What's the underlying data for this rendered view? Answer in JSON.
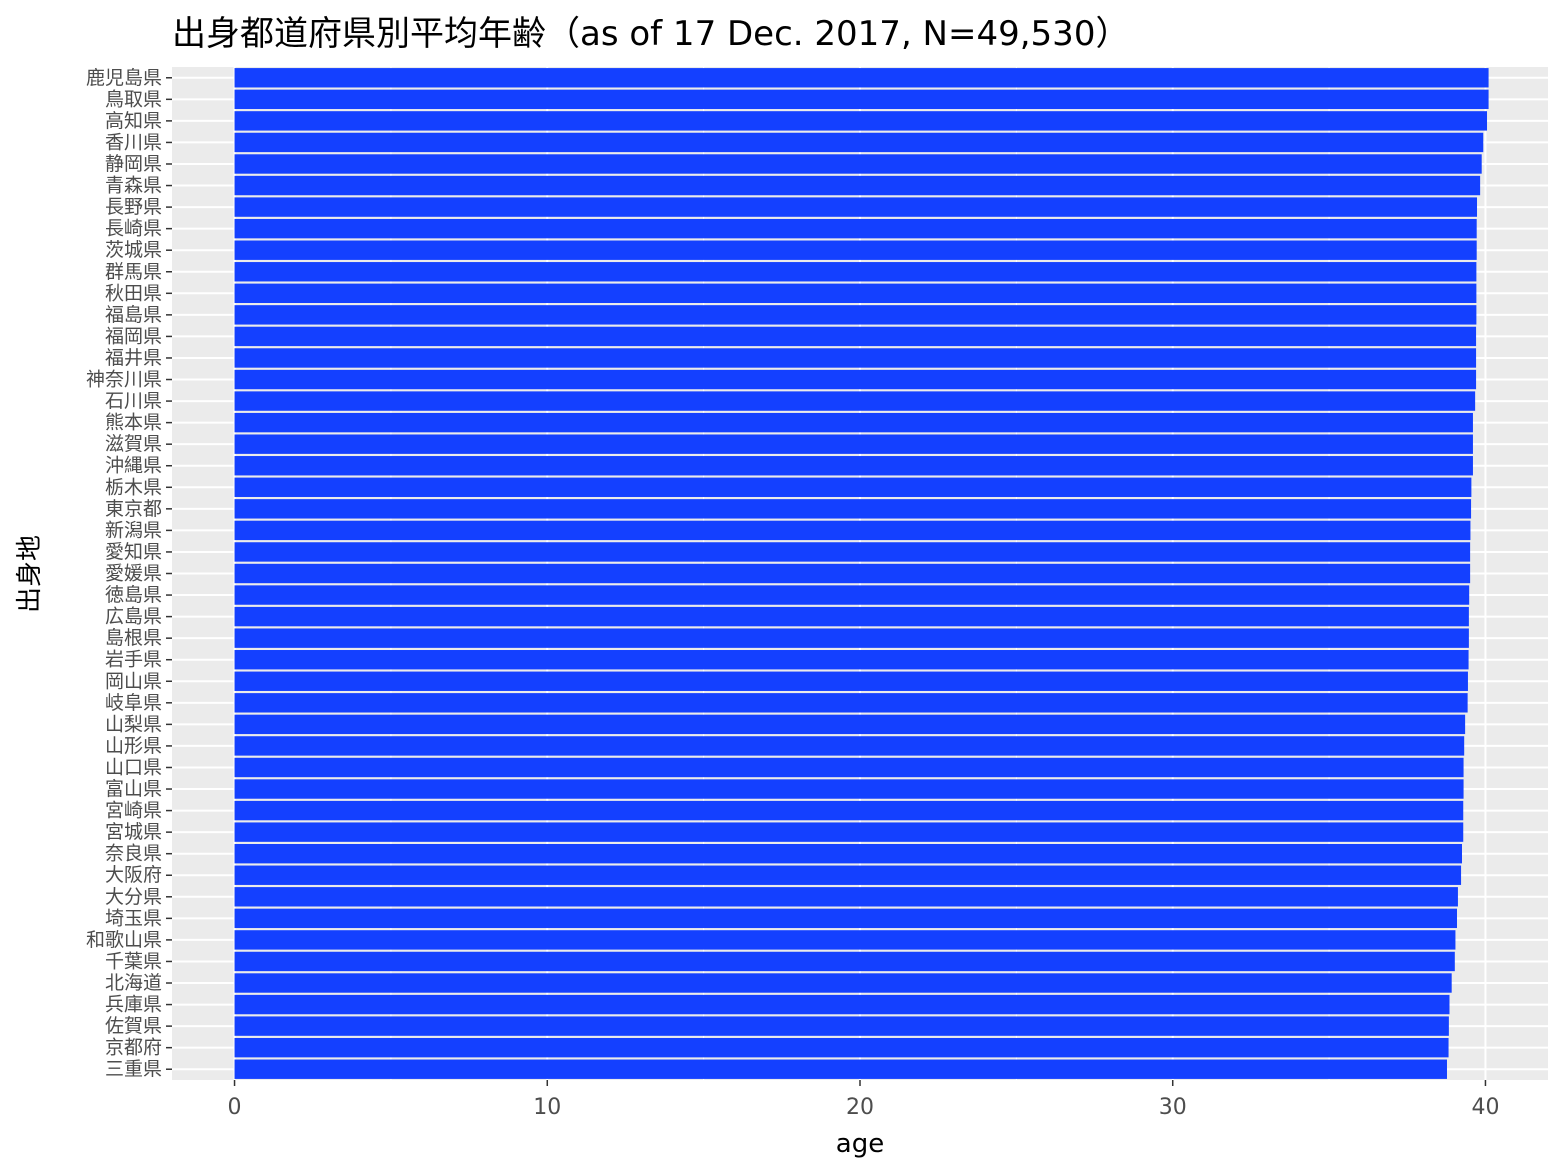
{
  "chart_data": {
    "type": "bar",
    "orientation": "horizontal",
    "title": "出身都道府県別平均年齢（as of 17 Dec. 2017, N=49,530）",
    "xlabel": "age",
    "ylabel": "出身地",
    "xlim": [
      -2,
      42
    ],
    "x_ticks": [
      0,
      10,
      20,
      30,
      40
    ],
    "grid": true,
    "legend": "none",
    "bar_color": "#1440FF",
    "panel_color": "#EBEBEB",
    "grid_color": "#FFFFFF",
    "categories": [
      "鹿児島県",
      "鳥取県",
      "高知県",
      "香川県",
      "静岡県",
      "青森県",
      "長野県",
      "長崎県",
      "茨城県",
      "群馬県",
      "秋田県",
      "福島県",
      "福岡県",
      "福井県",
      "神奈川県",
      "石川県",
      "熊本県",
      "滋賀県",
      "沖縄県",
      "栃木県",
      "東京都",
      "新潟県",
      "愛知県",
      "愛媛県",
      "徳島県",
      "広島県",
      "島根県",
      "岩手県",
      "岡山県",
      "岐阜県",
      "山梨県",
      "山形県",
      "山口県",
      "富山県",
      "宮崎県",
      "宮城県",
      "奈良県",
      "大阪府",
      "大分県",
      "埼玉県",
      "和歌山県",
      "千葉県",
      "北海道",
      "兵庫県",
      "佐賀県",
      "京都府",
      "三重県"
    ],
    "values": [
      40.1,
      40.1,
      40.05,
      39.93,
      39.88,
      39.83,
      39.73,
      39.72,
      39.72,
      39.71,
      39.71,
      39.71,
      39.7,
      39.7,
      39.7,
      39.67,
      39.6,
      39.6,
      39.6,
      39.55,
      39.54,
      39.52,
      39.51,
      39.51,
      39.48,
      39.47,
      39.47,
      39.46,
      39.44,
      39.43,
      39.35,
      39.32,
      39.3,
      39.3,
      39.29,
      39.29,
      39.25,
      39.22,
      39.12,
      39.09,
      39.04,
      39.02,
      38.92,
      38.85,
      38.83,
      38.82,
      38.77
    ]
  }
}
